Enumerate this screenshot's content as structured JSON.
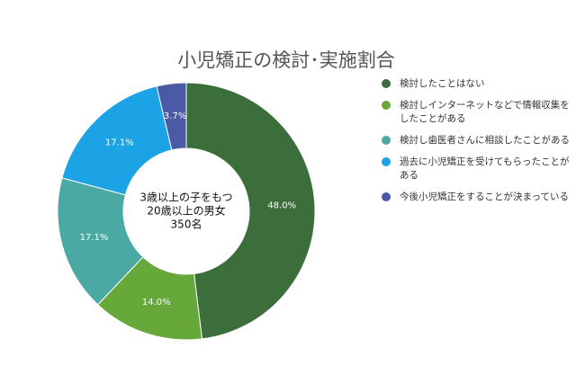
{
  "chart_data": {
    "type": "donut",
    "title": "小児矯正の検討･実施割合",
    "center_label": [
      "3歳以上の子をもつ",
      "20歳以上の男女",
      "350名"
    ],
    "categories": [
      "検討したことはない",
      "検討しインターネットなどで情報収集をしたことがある",
      "検討し歯医者さんに相談したことがある",
      "過去に小児矯正を受けてもらったことがある",
      "今後小児矯正をすることが決まっている"
    ],
    "values": [
      48.0,
      14.0,
      17.1,
      17.1,
      3.7
    ],
    "value_labels": [
      "48.0%",
      "14.0%",
      "17.1%",
      "17.1%",
      "3.7%"
    ],
    "colors": [
      "#3b6e3b",
      "#66a83a",
      "#4aa9a2",
      "#1ba3e6",
      "#4a5aa6"
    ],
    "legend": "right"
  }
}
